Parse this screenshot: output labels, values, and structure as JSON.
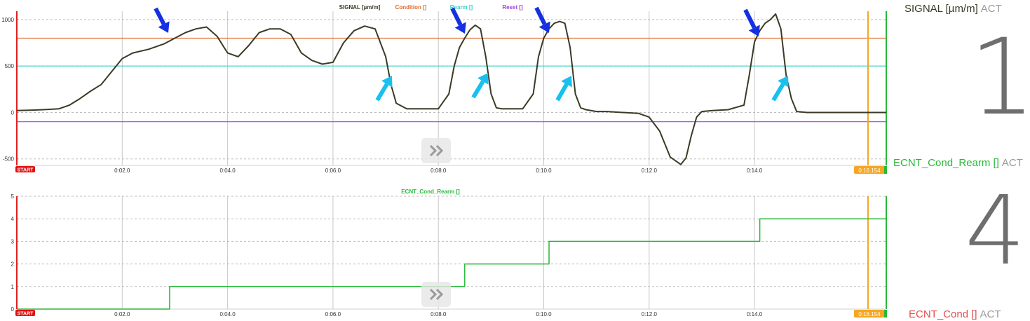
{
  "colors": {
    "signal": "#3a3a26",
    "condition": "#e06a2a",
    "rearm": "#33d3c8",
    "reset": "#a040e0",
    "counter": "#2ab83a",
    "cursor": "#f5a623",
    "start_badge": "#dd1111",
    "axis_left": "#e02020",
    "axis_right": "#2ab83a",
    "arrow_dark": "#1530e0",
    "arrow_light": "#18c0f0"
  },
  "chart_data": [
    {
      "type": "line",
      "legend": [
        "SIGNAL [µm/m]",
        "Condition []",
        "Rearm []",
        "Reset []"
      ],
      "legend_placement": "top-center",
      "ylim": [
        -570,
        1090
      ],
      "xlim": [
        0,
        16.5
      ],
      "yticks": [
        1000,
        500,
        0,
        -500
      ],
      "xticks": [
        "0:02.0",
        "0:04.0",
        "0:06.0",
        "0:08.0",
        "0:10.0",
        "0:12.0",
        "0:14.0"
      ],
      "xtick_values": [
        2,
        4,
        6,
        8,
        10,
        12,
        14
      ],
      "grid": true,
      "start_label": "START",
      "cursor_label": "0:16.154",
      "cursor_x": 16.154,
      "thresholds": [
        {
          "name": "Condition []",
          "value": 800,
          "color": "#e06a2a"
        },
        {
          "name": "Rearm []",
          "value": 500,
          "color": "#33d3c8"
        },
        {
          "name": "Reset []",
          "value": -100,
          "color": "#a040e0"
        }
      ],
      "series": [
        {
          "name": "SIGNAL [µm/m]",
          "x": [
            0,
            0.3,
            0.5,
            0.8,
            1.0,
            1.2,
            1.4,
            1.6,
            1.8,
            2.0,
            2.2,
            2.5,
            2.8,
            3.0,
            3.2,
            3.4,
            3.6,
            3.8,
            4.0,
            4.2,
            4.4,
            4.6,
            4.8,
            5.0,
            5.2,
            5.4,
            5.6,
            5.8,
            6.0,
            6.2,
            6.4,
            6.6,
            6.8,
            7.0,
            7.1,
            7.2,
            7.4,
            7.6,
            7.8,
            8.0,
            8.2,
            8.3,
            8.4,
            8.5,
            8.6,
            8.7,
            8.8,
            8.9,
            9.0,
            9.1,
            9.2,
            9.4,
            9.6,
            9.8,
            9.9,
            10.0,
            10.1,
            10.2,
            10.3,
            10.4,
            10.5,
            10.6,
            10.7,
            10.8,
            11.0,
            11.2,
            11.5,
            11.8,
            12.0,
            12.2,
            12.4,
            12.6,
            12.7,
            12.8,
            12.9,
            13.0,
            13.2,
            13.5,
            13.8,
            13.9,
            14.0,
            14.1,
            14.2,
            14.3,
            14.4,
            14.5,
            14.6,
            14.7,
            14.8,
            15.0,
            15.5,
            16.0,
            16.5
          ],
          "y": [
            20,
            25,
            30,
            40,
            80,
            150,
            230,
            300,
            440,
            580,
            640,
            680,
            740,
            800,
            860,
            900,
            920,
            820,
            640,
            600,
            720,
            860,
            900,
            900,
            840,
            640,
            560,
            520,
            540,
            750,
            880,
            930,
            900,
            600,
            300,
            100,
            40,
            40,
            40,
            40,
            200,
            500,
            700,
            800,
            890,
            940,
            900,
            600,
            200,
            50,
            40,
            40,
            40,
            200,
            600,
            800,
            900,
            960,
            980,
            960,
            700,
            200,
            50,
            30,
            10,
            10,
            0,
            -10,
            -50,
            -200,
            -480,
            -560,
            -490,
            -250,
            -50,
            10,
            20,
            30,
            80,
            400,
            760,
            880,
            960,
            1000,
            1060,
            900,
            400,
            150,
            10,
            0,
            0,
            0,
            0
          ]
        }
      ]
    },
    {
      "type": "line",
      "step": true,
      "title": "ECNT_Cond_Rearm []",
      "ylim": [
        0,
        5
      ],
      "yticks": [
        5,
        4,
        3,
        2,
        1,
        0
      ],
      "xlim": [
        0,
        16.5
      ],
      "xticks": [
        "0:02.0",
        "0:04.0",
        "0:06.0",
        "0:08.0",
        "0:10.0",
        "0:12.0",
        "0:14.0"
      ],
      "xtick_values": [
        2,
        4,
        6,
        8,
        10,
        12,
        14
      ],
      "grid": true,
      "start_label": "START",
      "cursor_label": "0:16.154",
      "cursor_x": 16.154,
      "series": [
        {
          "name": "ECNT_Cond_Rearm []",
          "x": [
            0,
            2.9,
            8.5,
            10.1,
            14.1,
            16.5
          ],
          "y": [
            0,
            1,
            2,
            3,
            4,
            4
          ]
        }
      ]
    }
  ],
  "side_panel": {
    "signal_label": "SIGNAL [µm/m]",
    "signal_act": "ACT",
    "signal_value": "1",
    "rearm_label": "ECNT_Cond_Rearm []",
    "rearm_act": "ACT",
    "rearm_value": "4",
    "cond_label": "ECNT_Cond []",
    "cond_act": "ACT"
  },
  "nav_icon": "double-chevron-right-icon"
}
